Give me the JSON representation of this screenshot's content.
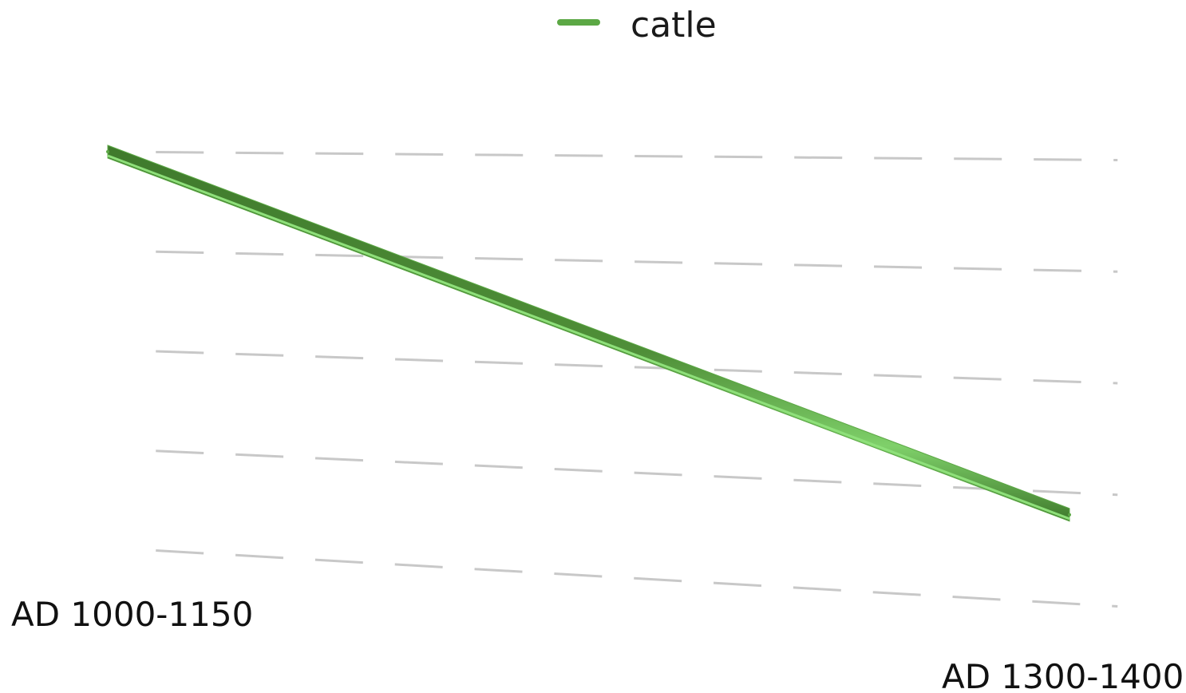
{
  "chart_data": {
    "type": "line",
    "categories": [
      "AD 1000-1150",
      "AD 1300-1400"
    ],
    "series": [
      {
        "name": "catle",
        "values": [
          5,
          1
        ],
        "color": "#5ca845"
      }
    ],
    "ylim": [
      0,
      5
    ],
    "grid": true,
    "legend_position": "top-center",
    "perspective": "3d"
  }
}
